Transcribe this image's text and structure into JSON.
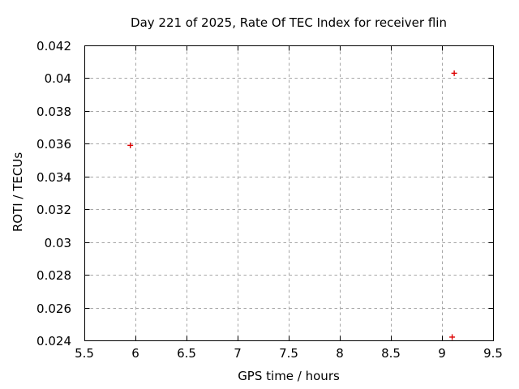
{
  "colors": {
    "background": "#ffffff",
    "text": "#000000",
    "axis": "#000000",
    "grid": "#a6a6a6",
    "point": "#dd0000"
  },
  "chart_data": {
    "type": "scatter",
    "title": "Day 221 of 2025, Rate Of TEC Index for receiver flin",
    "xlabel": "GPS time / hours",
    "ylabel": "ROTI / TECUs",
    "xlim": [
      5.5,
      9.5
    ],
    "ylim": [
      0.024,
      0.042
    ],
    "xticks": [
      5.5,
      6,
      6.5,
      7,
      7.5,
      8,
      8.5,
      9,
      9.5
    ],
    "xtick_labels": [
      "5.5",
      "6",
      "6.5",
      "7",
      "7.5",
      "8",
      "8.5",
      "9",
      "9.5"
    ],
    "yticks": [
      0.024,
      0.026,
      0.028,
      0.03,
      0.032,
      0.034,
      0.036,
      0.038,
      0.04,
      0.042
    ],
    "ytick_labels": [
      "0.024",
      "0.026",
      "0.028",
      "0.03",
      "0.032",
      "0.034",
      "0.036",
      "0.038",
      "0.04",
      "0.042"
    ],
    "grid": true,
    "legend": "none",
    "marker": "plus",
    "series": [
      {
        "name": "ROTI",
        "points": [
          [
            5.95,
            0.0359
          ],
          [
            9.12,
            0.0403
          ],
          [
            9.1,
            0.0242
          ]
        ]
      }
    ]
  }
}
